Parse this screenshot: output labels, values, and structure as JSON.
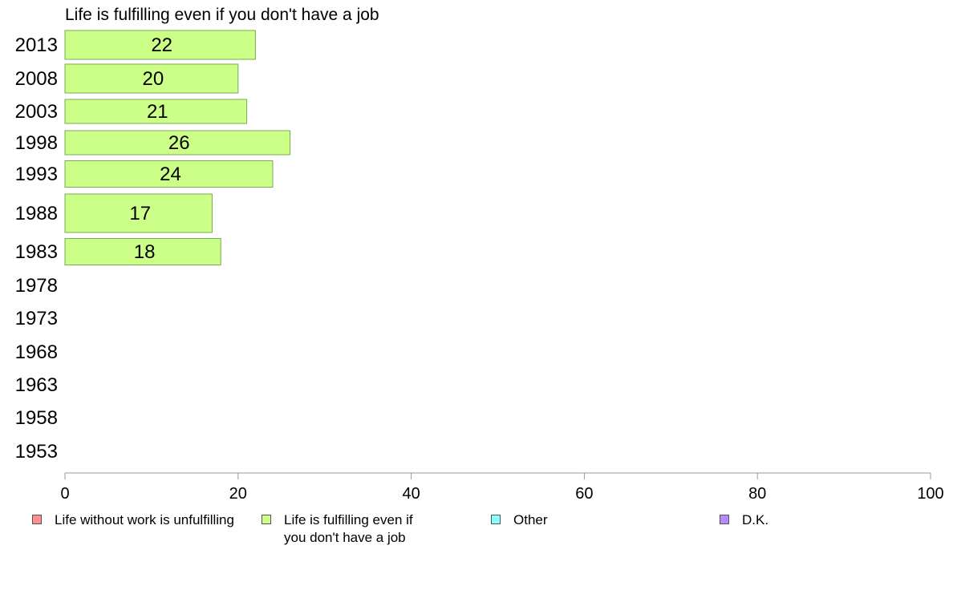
{
  "chart_data": {
    "type": "bar",
    "orientation": "horizontal",
    "title": "Life is fulfilling even if you don't have a job",
    "categories": [
      "2013",
      "2008",
      "2003",
      "1998",
      "1993",
      "1988",
      "1983",
      "1978",
      "1973",
      "1968",
      "1963",
      "1958",
      "1953"
    ],
    "series": [
      {
        "name": "Life is fulfilling even if you don't have a job",
        "values": [
          22,
          20,
          21,
          26,
          24,
          17,
          18,
          null,
          null,
          null,
          null,
          null,
          null
        ]
      }
    ],
    "data_labels": [
      "22",
      "20",
      "21",
      "26",
      "24",
      "17",
      "18",
      "",
      "",
      "",
      "",
      "",
      ""
    ],
    "xlim": [
      0,
      100
    ],
    "xticks": [
      "0",
      "20",
      "40",
      "60",
      "80",
      "100"
    ],
    "bar_color": "#ccff88",
    "bar_border_color": "#7aaa55",
    "axis_color": "#999999",
    "grid": false,
    "legend_position": "bottom"
  },
  "legend": {
    "items": [
      {
        "label": "Life without work is unfulfilling",
        "color": "#ff8f8f"
      },
      {
        "label": "Life is fulfilling even if you don't have a job",
        "color": "#ccff88"
      },
      {
        "label": "Other",
        "color": "#88ffff"
      },
      {
        "label": "D.K.",
        "color": "#bb88ff"
      }
    ]
  }
}
